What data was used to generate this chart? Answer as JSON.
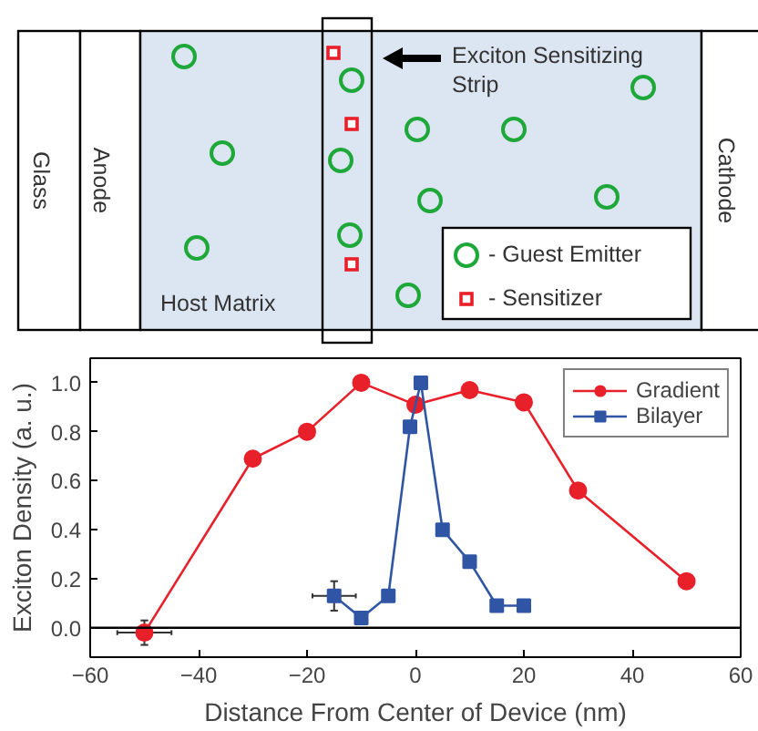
{
  "chart_data": [
    {
      "type": "other",
      "annotations": [
        "Glass",
        "Anode",
        "Host Matrix",
        "Cathode",
        "Exciton Sensitizing Strip",
        "- Guest Emitter",
        "- Sensitizer"
      ]
    },
    {
      "type": "line",
      "xlabel": "Distance From Center of Device (nm)",
      "ylabel": "Exciton Density (a. u.)",
      "xlim": [
        -60,
        60
      ],
      "xticks": [
        -60,
        -40,
        -20,
        0,
        20,
        40,
        60
      ],
      "ylim": [
        -0.12,
        1.1
      ],
      "yticks": [
        {
          "value": 0,
          "label": "0.0"
        },
        0.2,
        0.4,
        0.6,
        0.8,
        {
          "value": 1,
          "label": "1.0"
        }
      ],
      "grid": false,
      "legend": "top right",
      "ref_lines": [
        {
          "axis": "y",
          "value": 0,
          "color": "#000000"
        }
      ],
      "series": [
        {
          "name": "Gradient",
          "color": "#e8202a",
          "marker": "circle",
          "x": [
            -50,
            -30,
            -20,
            -10,
            0,
            10,
            20,
            30,
            50
          ],
          "values": [
            -0.02,
            0.69,
            0.8,
            1.0,
            0.91,
            0.97,
            0.92,
            0.56,
            0.19
          ],
          "errors": [
            0.05,
            null,
            null,
            null,
            null,
            null,
            null,
            null,
            null
          ],
          "xerrors": [
            5,
            null,
            null,
            null,
            null,
            null,
            null,
            null,
            null
          ]
        },
        {
          "name": "Bilayer",
          "color": "#2f55a4",
          "marker": "square",
          "x": [
            -15,
            -10,
            -5,
            -1,
            1,
            5,
            10,
            15,
            20
          ],
          "values": [
            0.13,
            0.04,
            0.13,
            0.82,
            1.0,
            0.4,
            0.27,
            0.09,
            0.09
          ],
          "errors": [
            0.06,
            null,
            null,
            null,
            null,
            null,
            null,
            null,
            null
          ],
          "xerrors": [
            4,
            null,
            null,
            null,
            null,
            null,
            null,
            null,
            null
          ]
        }
      ]
    }
  ]
}
